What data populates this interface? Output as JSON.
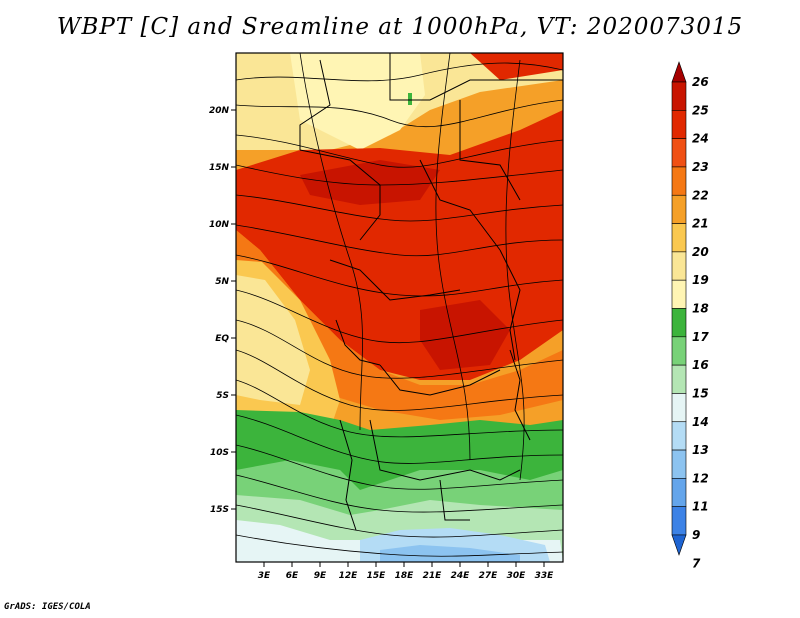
{
  "title": "WBPT [C] and Sreamline at 1000hPa, VT: 2020073015",
  "credit": "GrADS: IGES/COLA",
  "map": {
    "lat_ticks": [
      "20N",
      "15N",
      "10N",
      "5N",
      "EQ",
      "5S",
      "10S",
      "15S"
    ],
    "lon_ticks": [
      "3E",
      "6E",
      "9E",
      "12E",
      "15E",
      "18E",
      "21E",
      "24E",
      "27E",
      "30E",
      "33E"
    ]
  },
  "colorbar": {
    "labels": [
      "26",
      "25",
      "24",
      "23",
      "22",
      "21",
      "20",
      "19",
      "18",
      "17",
      "16",
      "15",
      "14",
      "13",
      "12",
      "11",
      "9",
      "7"
    ],
    "colors": [
      "#a50000",
      "#c81400",
      "#e12800",
      "#f05014",
      "#f57814",
      "#f5a028",
      "#fac850",
      "#fae696",
      "#fff5b4",
      "#3cb43c",
      "#78d278",
      "#b4e6b4",
      "#e6f5f5",
      "#b4dcf5",
      "#8cc3f0",
      "#64a5eb",
      "#3c82e6",
      "#1e64d2"
    ]
  }
}
